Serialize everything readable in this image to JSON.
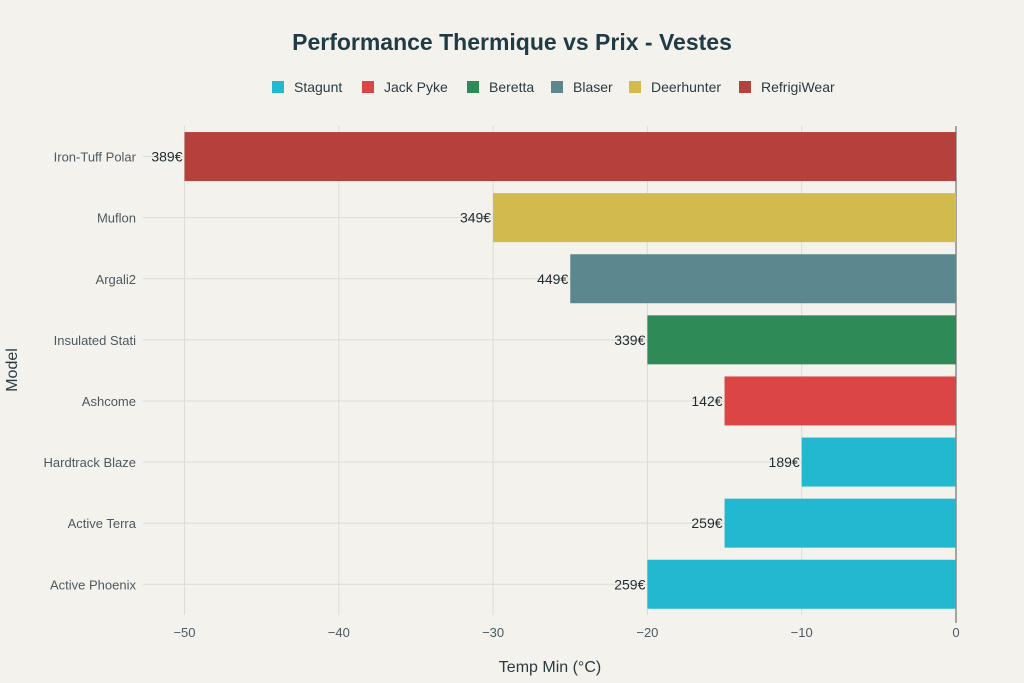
{
  "chart_data": {
    "type": "bar",
    "orientation": "horizontal",
    "title": "Performance Thermique vs Prix - Vestes",
    "xlabel": "Temp Min (°C)",
    "ylabel": "Model",
    "xlim": [
      -53,
      0
    ],
    "xticks": [
      -50,
      -40,
      -30,
      -20,
      -10,
      0
    ],
    "xtick_labels": [
      "−50",
      "−40",
      "−30",
      "−20",
      "−10",
      "0"
    ],
    "grid": true,
    "legend_position": "top-center",
    "legend": [
      {
        "name": "Stagunt",
        "color": "#22b8cf"
      },
      {
        "name": "Jack Pyke",
        "color": "#db4545"
      },
      {
        "name": "Beretta",
        "color": "#2e8b57"
      },
      {
        "name": "Blaser",
        "color": "#5d878f"
      },
      {
        "name": "Deerhunter",
        "color": "#d2ba4c"
      },
      {
        "name": "RefrigiWear",
        "color": "#b4413c"
      }
    ],
    "categories": [
      "Iron-Tuff Polar",
      "Muflon",
      "Argali2",
      "Insulated Stati",
      "Ashcome",
      "Hardtrack Blaze",
      "Active Terra",
      "Active Phoenix"
    ],
    "values": [
      -50,
      -30,
      -25,
      -20,
      -15,
      -10,
      -15,
      -20
    ],
    "brands": [
      "RefrigiWear",
      "Deerhunter",
      "Blaser",
      "Beretta",
      "Jack Pyke",
      "Stagunt",
      "Stagunt",
      "Stagunt"
    ],
    "bar_labels": [
      "389€",
      "349€",
      "449€",
      "339€",
      "142€",
      "189€",
      "259€",
      "259€"
    ]
  }
}
